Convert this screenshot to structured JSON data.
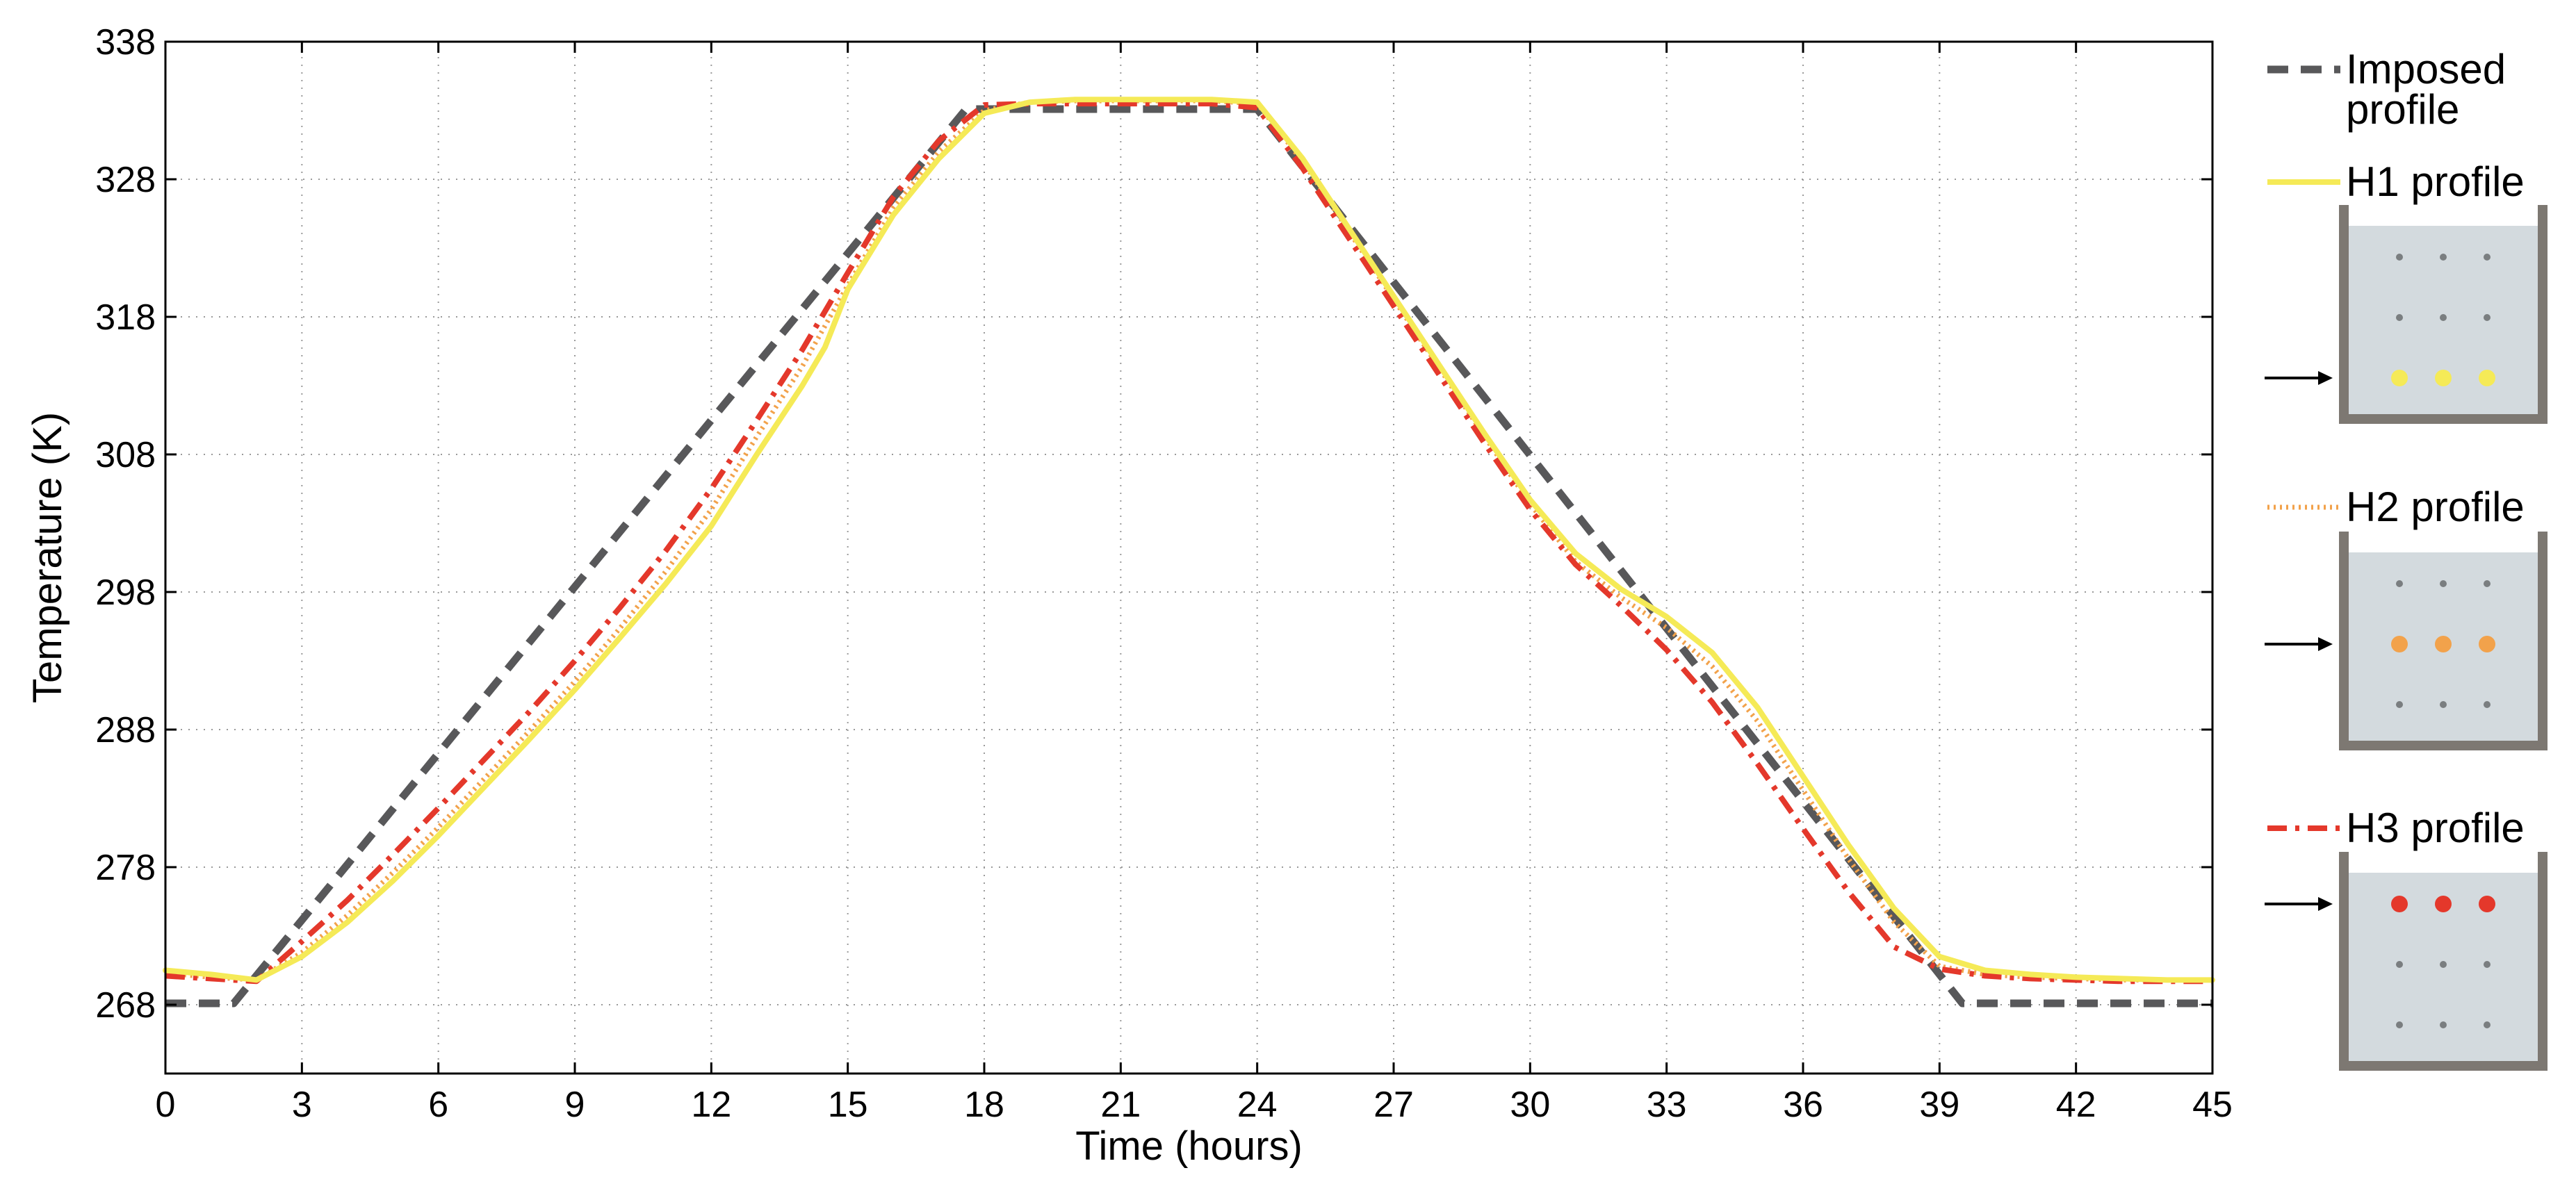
{
  "chart_data": {
    "type": "line",
    "title": "",
    "xlabel": "Time (hours)",
    "ylabel": "Temperature (K)",
    "xlim": [
      0,
      45
    ],
    "ylim": [
      263,
      338
    ],
    "xticks": [
      0,
      3,
      6,
      9,
      12,
      15,
      18,
      21,
      24,
      27,
      30,
      33,
      36,
      39,
      42,
      45
    ],
    "yticks": [
      268,
      278,
      288,
      298,
      308,
      318,
      328,
      338
    ],
    "grid": true,
    "legend_placement": "right, outside plot",
    "series": [
      {
        "name": "Imposed profile",
        "legend_lines": [
          "Imposed",
          "profile"
        ],
        "color": "#58585a",
        "style": "dashed",
        "x": [
          0,
          1.5,
          17.6,
          24.0,
          39.5,
          45
        ],
        "y": [
          268.1,
          268.1,
          333.1,
          333.1,
          268.1,
          268.1
        ]
      },
      {
        "name": "H1 profile",
        "legend_lines": [
          "H1 profile"
        ],
        "color": "#f5ea57",
        "style": "solid",
        "x": [
          0,
          1.0,
          2.0,
          3.0,
          4.0,
          5.0,
          6.0,
          7.0,
          8.0,
          9.0,
          10.0,
          11.0,
          12.0,
          13.0,
          14.0,
          14.5,
          15.0,
          16.0,
          17.0,
          18.0,
          19.0,
          20.0,
          21.0,
          22.0,
          23.0,
          24.0,
          25.0,
          26.0,
          27.0,
          28.0,
          29.0,
          30.0,
          31.0,
          32.0,
          33.0,
          34.0,
          35.0,
          36.0,
          37.0,
          38.0,
          39.0,
          40.0,
          41.0,
          42.0,
          43.0,
          44.0,
          45.0
        ],
        "y": [
          270.5,
          270.2,
          269.8,
          271.5,
          274.0,
          277.0,
          280.3,
          283.8,
          287.3,
          290.9,
          294.7,
          298.6,
          302.8,
          308.0,
          313.0,
          315.8,
          320.0,
          325.4,
          329.5,
          332.8,
          333.6,
          333.8,
          333.8,
          333.8,
          333.8,
          333.6,
          329.5,
          324.5,
          319.5,
          314.5,
          309.5,
          304.7,
          300.8,
          298.2,
          296.2,
          293.6,
          289.6,
          284.6,
          279.6,
          275.0,
          271.5,
          270.5,
          270.2,
          270.0,
          269.9,
          269.8,
          269.8
        ]
      },
      {
        "name": "H2 profile",
        "legend_lines": [
          "H2 profile"
        ],
        "color": "#f2a24b",
        "style": "dotted",
        "x": [
          0,
          1.0,
          2.0,
          3.0,
          4.0,
          5.0,
          6.0,
          7.0,
          8.0,
          9.0,
          10.0,
          11.0,
          12.0,
          13.0,
          14.0,
          15.0,
          16.0,
          17.0,
          18.0,
          19.0,
          20.0,
          21.0,
          22.0,
          23.0,
          24.0,
          25.0,
          26.0,
          27.0,
          28.0,
          29.0,
          30.0,
          31.0,
          32.0,
          33.0,
          34.0,
          35.0,
          36.0,
          37.0,
          38.0,
          39.0,
          40.0,
          41.0,
          42.0,
          43.0,
          44.0,
          45.0
        ],
        "y": [
          270.3,
          270.0,
          269.8,
          271.8,
          274.5,
          277.6,
          280.9,
          284.4,
          287.9,
          291.5,
          295.4,
          299.5,
          304.0,
          309.3,
          314.4,
          320.3,
          325.9,
          330.0,
          333.0,
          333.6,
          333.7,
          333.7,
          333.7,
          333.7,
          333.5,
          329.3,
          324.3,
          319.3,
          314.3,
          309.3,
          304.4,
          300.2,
          297.6,
          295.4,
          292.6,
          288.6,
          283.6,
          278.6,
          274.0,
          270.8,
          270.2,
          270.0,
          269.9,
          269.8,
          269.8,
          269.8
        ]
      },
      {
        "name": "H3 profile",
        "legend_lines": [
          "H3 profile"
        ],
        "color": "#e4382b",
        "style": "dashdot",
        "x": [
          0,
          1.0,
          2.0,
          3.0,
          4.0,
          5.0,
          6.0,
          7.0,
          8.0,
          9.0,
          10.0,
          11.0,
          12.0,
          13.0,
          14.0,
          15.0,
          16.0,
          17.0,
          18.0,
          19.0,
          20.0,
          21.0,
          22.0,
          23.0,
          24.0,
          25.0,
          26.0,
          27.0,
          28.0,
          29.0,
          30.0,
          31.0,
          32.0,
          33.0,
          34.0,
          35.0,
          36.0,
          37.0,
          38.0,
          39.0,
          40.0,
          41.0,
          42.0,
          43.0,
          44.0,
          45.0
        ],
        "y": [
          270.1,
          269.9,
          269.7,
          272.6,
          275.6,
          278.9,
          282.3,
          285.8,
          289.3,
          293.0,
          296.9,
          301.0,
          305.5,
          310.5,
          315.6,
          321.2,
          326.7,
          330.8,
          333.4,
          333.5,
          333.5,
          333.5,
          333.5,
          333.5,
          333.2,
          328.8,
          323.8,
          318.8,
          313.8,
          308.8,
          304.0,
          300.0,
          297.0,
          293.8,
          290.0,
          285.5,
          280.8,
          276.2,
          272.2,
          270.6,
          270.1,
          269.9,
          269.8,
          269.7,
          269.7,
          269.7
        ]
      }
    ]
  },
  "legend_insets": [
    {
      "series": "H1 profile",
      "highlight_row": 2,
      "dot_color": "#f5ea57"
    },
    {
      "series": "H2 profile",
      "highlight_row": 1,
      "dot_color": "#f2a24b"
    },
    {
      "series": "H3 profile",
      "highlight_row": 0,
      "dot_color": "#e4382b"
    }
  ],
  "colors": {
    "grid": "#9a9a9a",
    "container_wall": "#7d7872",
    "container_fill": "#d3dade",
    "sensor_dot": "#7a7e80",
    "arrow": "#000000"
  }
}
